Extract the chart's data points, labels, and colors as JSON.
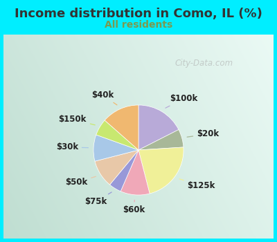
{
  "title": "Income distribution in Como, IL (%)",
  "subtitle": "All residents",
  "title_color": "#333333",
  "subtitle_color": "#7a9a50",
  "bg_outer": "#00eeff",
  "bg_inner_left": "#c8e8d8",
  "bg_inner_right": "#e8f4f0",
  "watermark": "City-Data.com",
  "slices": [
    {
      "label": "$100k",
      "value": 17.5,
      "color": "#b8aad8"
    },
    {
      "label": "$20k",
      "value": 6.5,
      "color": "#a8b898"
    },
    {
      "label": "$125k",
      "value": 22.0,
      "color": "#f0f098"
    },
    {
      "label": "$60k",
      "value": 10.5,
      "color": "#f0a8b8"
    },
    {
      "label": "$75k",
      "value": 4.5,
      "color": "#9898d8"
    },
    {
      "label": "$50k",
      "value": 10.0,
      "color": "#e8c8a8"
    },
    {
      "label": "$30k",
      "value": 9.5,
      "color": "#a8c8e8"
    },
    {
      "label": "$150k",
      "value": 6.0,
      "color": "#c8e870"
    },
    {
      "label": "$40k",
      "value": 13.5,
      "color": "#f0b870"
    }
  ],
  "label_fontsize": 8.5,
  "title_fontsize": 13,
  "subtitle_fontsize": 10
}
